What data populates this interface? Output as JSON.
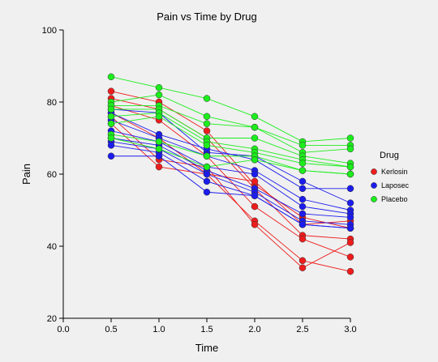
{
  "chart_data": {
    "type": "line",
    "title": "Pain vs Time by Drug",
    "xlabel": "Time",
    "ylabel": "Pain",
    "xlim": [
      0.0,
      3.0
    ],
    "ylim": [
      20,
      100
    ],
    "x_ticks": [
      "0.0",
      "0.5",
      "1.0",
      "1.5",
      "2.0",
      "2.5",
      "3.0"
    ],
    "y_ticks": [
      "20",
      "40",
      "60",
      "80",
      "100"
    ],
    "x": [
      0.5,
      1.0,
      1.5,
      2.0,
      2.5,
      3.0
    ],
    "grid": false,
    "legend_title": "Drug",
    "legend_position": "right",
    "series": [
      {
        "name": "Kerlosin",
        "color": "#ee1c1c",
        "subjects": [
          [
            83,
            80,
            72,
            57,
            48,
            45
          ],
          [
            81,
            78,
            70,
            56,
            43,
            42
          ],
          [
            79,
            75,
            65,
            51,
            42,
            37
          ],
          [
            77,
            70,
            60,
            47,
            36,
            33
          ],
          [
            76,
            64,
            62,
            46,
            34,
            41
          ],
          [
            74,
            62,
            60,
            58,
            46,
            47
          ]
        ]
      },
      {
        "name": "Laposec",
        "color": "#1c1cee",
        "subjects": [
          [
            78,
            77,
            66,
            65,
            58,
            52
          ],
          [
            77,
            71,
            67,
            64,
            56,
            56
          ],
          [
            75,
            70,
            65,
            61,
            53,
            50
          ],
          [
            72,
            69,
            62,
            60,
            51,
            49
          ],
          [
            70,
            68,
            61,
            56,
            49,
            48
          ],
          [
            69,
            67,
            60,
            55,
            47,
            46
          ],
          [
            68,
            66,
            58,
            54,
            46,
            45
          ],
          [
            65,
            65,
            55,
            54,
            46,
            45
          ]
        ]
      },
      {
        "name": "Placebo",
        "color": "#1cee1c",
        "subjects": [
          [
            87,
            84,
            81,
            76,
            69,
            70
          ],
          [
            80,
            82,
            76,
            73,
            68,
            68
          ],
          [
            79,
            79,
            74,
            73,
            66,
            67
          ],
          [
            78,
            78,
            70,
            70,
            65,
            63
          ],
          [
            76,
            77,
            69,
            67,
            64,
            62
          ],
          [
            74,
            76,
            68,
            66,
            63,
            62
          ],
          [
            71,
            69,
            65,
            65,
            61,
            60
          ],
          [
            70,
            67,
            62,
            64,
            61,
            60
          ]
        ]
      }
    ]
  }
}
